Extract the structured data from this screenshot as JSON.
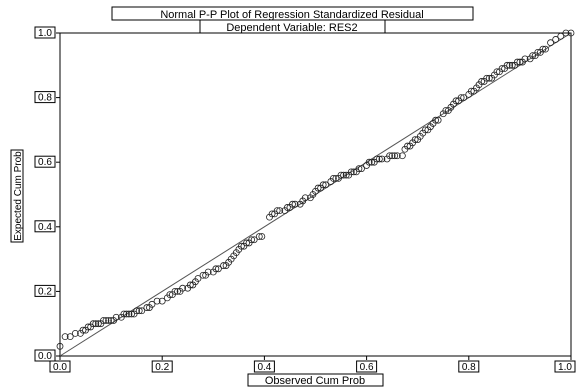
{
  "chart_data": {
    "type": "scatter",
    "title": "Normal P-P Plot of Regression Standardized Residual",
    "subtitle": "Dependent Variable: RES2",
    "xlabel": "Observed Cum Prob",
    "ylabel": "Expected Cum Prob",
    "xlim": [
      0.0,
      1.0
    ],
    "ylim": [
      0.0,
      1.0
    ],
    "xticks": [
      0.0,
      0.2,
      0.4,
      0.6,
      0.8,
      1.0
    ],
    "yticks": [
      0.0,
      0.2,
      0.4,
      0.6,
      0.8,
      1.0
    ],
    "xtick_labels": [
      "0.0",
      "0.2",
      "0.4",
      "0.6",
      "0.8",
      "1.0"
    ],
    "ytick_labels": [
      "0.0",
      "0.2",
      "0.4",
      "0.6",
      "0.8",
      "1.0"
    ],
    "grid": false,
    "reference_line": {
      "from": [
        0.0,
        0.0
      ],
      "to": [
        1.0,
        1.0
      ]
    },
    "colors": {
      "background": "#ffffff",
      "axis": "#000000",
      "marker": "#222222",
      "reference_line": "#555555"
    },
    "points": [
      [
        0.0,
        0.03
      ],
      [
        0.01,
        0.06
      ],
      [
        0.02,
        0.06
      ],
      [
        0.03,
        0.07
      ],
      [
        0.04,
        0.07
      ],
      [
        0.045,
        0.08
      ],
      [
        0.05,
        0.08
      ],
      [
        0.055,
        0.09
      ],
      [
        0.06,
        0.09
      ],
      [
        0.065,
        0.1
      ],
      [
        0.07,
        0.1
      ],
      [
        0.075,
        0.1
      ],
      [
        0.08,
        0.1
      ],
      [
        0.085,
        0.11
      ],
      [
        0.09,
        0.11
      ],
      [
        0.095,
        0.11
      ],
      [
        0.1,
        0.11
      ],
      [
        0.105,
        0.11
      ],
      [
        0.11,
        0.12
      ],
      [
        0.12,
        0.12
      ],
      [
        0.125,
        0.13
      ],
      [
        0.13,
        0.13
      ],
      [
        0.135,
        0.13
      ],
      [
        0.14,
        0.13
      ],
      [
        0.145,
        0.13
      ],
      [
        0.15,
        0.14
      ],
      [
        0.155,
        0.14
      ],
      [
        0.16,
        0.14
      ],
      [
        0.17,
        0.15
      ],
      [
        0.175,
        0.15
      ],
      [
        0.18,
        0.16
      ],
      [
        0.19,
        0.17
      ],
      [
        0.2,
        0.17
      ],
      [
        0.21,
        0.18
      ],
      [
        0.215,
        0.19
      ],
      [
        0.22,
        0.19
      ],
      [
        0.225,
        0.2
      ],
      [
        0.23,
        0.2
      ],
      [
        0.235,
        0.2
      ],
      [
        0.24,
        0.21
      ],
      [
        0.25,
        0.21
      ],
      [
        0.255,
        0.22
      ],
      [
        0.26,
        0.22
      ],
      [
        0.265,
        0.23
      ],
      [
        0.27,
        0.24
      ],
      [
        0.28,
        0.25
      ],
      [
        0.285,
        0.25
      ],
      [
        0.29,
        0.26
      ],
      [
        0.3,
        0.26
      ],
      [
        0.305,
        0.27
      ],
      [
        0.31,
        0.27
      ],
      [
        0.32,
        0.28
      ],
      [
        0.325,
        0.28
      ],
      [
        0.33,
        0.29
      ],
      [
        0.335,
        0.3
      ],
      [
        0.34,
        0.31
      ],
      [
        0.345,
        0.32
      ],
      [
        0.35,
        0.33
      ],
      [
        0.355,
        0.34
      ],
      [
        0.36,
        0.34
      ],
      [
        0.365,
        0.35
      ],
      [
        0.37,
        0.35
      ],
      [
        0.375,
        0.36
      ],
      [
        0.38,
        0.36
      ],
      [
        0.39,
        0.37
      ],
      [
        0.395,
        0.37
      ],
      [
        0.41,
        0.43
      ],
      [
        0.415,
        0.44
      ],
      [
        0.42,
        0.44
      ],
      [
        0.425,
        0.45
      ],
      [
        0.43,
        0.45
      ],
      [
        0.44,
        0.45
      ],
      [
        0.445,
        0.46
      ],
      [
        0.45,
        0.46
      ],
      [
        0.455,
        0.47
      ],
      [
        0.46,
        0.47
      ],
      [
        0.47,
        0.47
      ],
      [
        0.475,
        0.48
      ],
      [
        0.48,
        0.49
      ],
      [
        0.49,
        0.49
      ],
      [
        0.495,
        0.5
      ],
      [
        0.5,
        0.51
      ],
      [
        0.505,
        0.52
      ],
      [
        0.51,
        0.52
      ],
      [
        0.515,
        0.53
      ],
      [
        0.52,
        0.53
      ],
      [
        0.53,
        0.54
      ],
      [
        0.535,
        0.55
      ],
      [
        0.54,
        0.55
      ],
      [
        0.545,
        0.55
      ],
      [
        0.55,
        0.56
      ],
      [
        0.555,
        0.56
      ],
      [
        0.56,
        0.56
      ],
      [
        0.565,
        0.56
      ],
      [
        0.57,
        0.57
      ],
      [
        0.575,
        0.57
      ],
      [
        0.58,
        0.57
      ],
      [
        0.585,
        0.58
      ],
      [
        0.59,
        0.58
      ],
      [
        0.6,
        0.59
      ],
      [
        0.605,
        0.6
      ],
      [
        0.61,
        0.6
      ],
      [
        0.615,
        0.6
      ],
      [
        0.62,
        0.61
      ],
      [
        0.625,
        0.61
      ],
      [
        0.63,
        0.61
      ],
      [
        0.64,
        0.61
      ],
      [
        0.645,
        0.62
      ],
      [
        0.65,
        0.62
      ],
      [
        0.655,
        0.62
      ],
      [
        0.66,
        0.62
      ],
      [
        0.67,
        0.62
      ],
      [
        0.675,
        0.64
      ],
      [
        0.68,
        0.65
      ],
      [
        0.685,
        0.65
      ],
      [
        0.69,
        0.66
      ],
      [
        0.695,
        0.67
      ],
      [
        0.7,
        0.67
      ],
      [
        0.705,
        0.68
      ],
      [
        0.71,
        0.69
      ],
      [
        0.715,
        0.7
      ],
      [
        0.72,
        0.7
      ],
      [
        0.725,
        0.71
      ],
      [
        0.73,
        0.72
      ],
      [
        0.735,
        0.73
      ],
      [
        0.74,
        0.73
      ],
      [
        0.75,
        0.75
      ],
      [
        0.755,
        0.76
      ],
      [
        0.76,
        0.76
      ],
      [
        0.765,
        0.77
      ],
      [
        0.77,
        0.78
      ],
      [
        0.775,
        0.79
      ],
      [
        0.78,
        0.79
      ],
      [
        0.785,
        0.8
      ],
      [
        0.79,
        0.8
      ],
      [
        0.8,
        0.81
      ],
      [
        0.805,
        0.82
      ],
      [
        0.81,
        0.82
      ],
      [
        0.815,
        0.83
      ],
      [
        0.82,
        0.84
      ],
      [
        0.825,
        0.85
      ],
      [
        0.83,
        0.85
      ],
      [
        0.835,
        0.86
      ],
      [
        0.84,
        0.86
      ],
      [
        0.845,
        0.86
      ],
      [
        0.85,
        0.87
      ],
      [
        0.855,
        0.88
      ],
      [
        0.86,
        0.88
      ],
      [
        0.865,
        0.89
      ],
      [
        0.87,
        0.89
      ],
      [
        0.875,
        0.9
      ],
      [
        0.88,
        0.9
      ],
      [
        0.885,
        0.9
      ],
      [
        0.89,
        0.9
      ],
      [
        0.895,
        0.91
      ],
      [
        0.9,
        0.91
      ],
      [
        0.905,
        0.91
      ],
      [
        0.91,
        0.92
      ],
      [
        0.92,
        0.92
      ],
      [
        0.925,
        0.93
      ],
      [
        0.93,
        0.93
      ],
      [
        0.935,
        0.94
      ],
      [
        0.94,
        0.94
      ],
      [
        0.945,
        0.95
      ],
      [
        0.95,
        0.95
      ],
      [
        0.96,
        0.97
      ],
      [
        0.97,
        0.98
      ],
      [
        0.98,
        0.99
      ],
      [
        0.99,
        1.0
      ],
      [
        1.0,
        1.0
      ]
    ]
  }
}
